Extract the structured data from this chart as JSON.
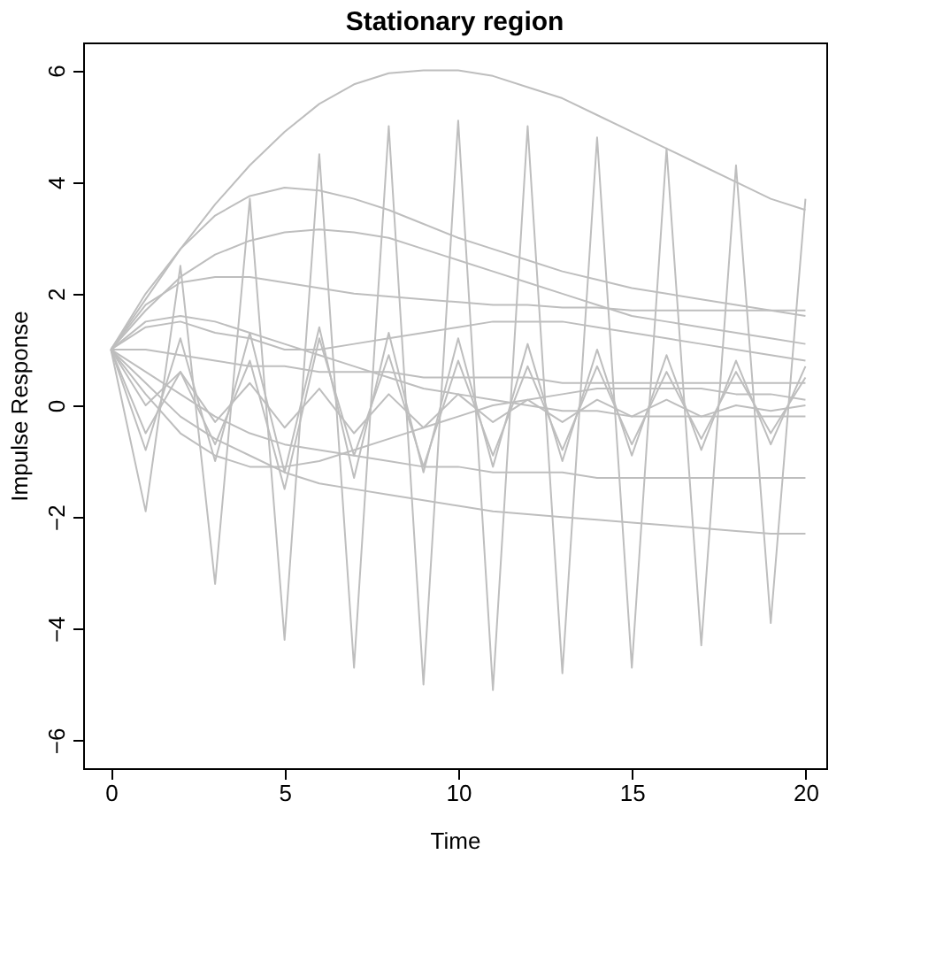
{
  "chart_data": {
    "type": "line",
    "title": "Stationary region",
    "xlabel": "Time",
    "ylabel": "Impulse Response",
    "x": [
      0,
      1,
      2,
      3,
      4,
      5,
      6,
      7,
      8,
      9,
      10,
      11,
      12,
      13,
      14,
      15,
      16,
      17,
      18,
      19,
      20
    ],
    "xlim": [
      -0.8,
      20.6
    ],
    "xticks": [
      0,
      5,
      10,
      15,
      20
    ],
    "ylim": [
      -6.5,
      6.5
    ],
    "yticks": [
      -6,
      -4,
      -2,
      0,
      2,
      4,
      6
    ],
    "grid": false,
    "legend": false,
    "series": [
      {
        "color": "#bebebe",
        "values": [
          1,
          1.9,
          2.8,
          3.6,
          4.3,
          4.9,
          5.4,
          5.75,
          5.95,
          6.0,
          6.0,
          5.9,
          5.7,
          5.5,
          5.2,
          4.9,
          4.6,
          4.3,
          4.0,
          3.7,
          3.5
        ]
      },
      {
        "color": "#bebebe",
        "values": [
          1,
          -1.9,
          2.5,
          -3.2,
          3.7,
          -4.2,
          4.5,
          -4.7,
          5.0,
          -5.0,
          5.1,
          -5.1,
          5.0,
          -4.8,
          4.8,
          -4.7,
          4.6,
          -4.3,
          4.3,
          -3.9,
          3.7
        ]
      },
      {
        "color": "#bebebe",
        "values": [
          1,
          2.0,
          2.8,
          3.4,
          3.75,
          3.9,
          3.85,
          3.7,
          3.5,
          3.25,
          3.0,
          2.8,
          2.6,
          2.4,
          2.25,
          2.1,
          2.0,
          1.9,
          1.8,
          1.7,
          1.6
        ]
      },
      {
        "color": "#bebebe",
        "values": [
          1,
          1.7,
          2.3,
          2.7,
          2.95,
          3.1,
          3.15,
          3.1,
          3.0,
          2.8,
          2.6,
          2.4,
          2.2,
          2.0,
          1.8,
          1.6,
          1.5,
          1.4,
          1.3,
          1.2,
          1.1
        ]
      },
      {
        "color": "#bebebe",
        "values": [
          1,
          1.8,
          2.2,
          2.3,
          2.3,
          2.2,
          2.1,
          2.0,
          1.95,
          1.9,
          1.85,
          1.8,
          1.8,
          1.75,
          1.75,
          1.7,
          1.7,
          1.7,
          1.7,
          1.7,
          1.7
        ]
      },
      {
        "color": "#bebebe",
        "values": [
          1,
          0.4,
          -0.2,
          -0.6,
          -0.9,
          -1.2,
          -1.4,
          -1.5,
          -1.6,
          -1.7,
          -1.8,
          -1.9,
          -1.95,
          -2.0,
          -2.05,
          -2.1,
          -2.15,
          -2.2,
          -2.25,
          -2.3,
          -2.3
        ]
      },
      {
        "color": "#bebebe",
        "values": [
          1,
          -0.8,
          1.2,
          -1.0,
          1.3,
          -1.2,
          1.4,
          -1.3,
          1.3,
          -1.2,
          1.2,
          -1.1,
          1.1,
          -1.0,
          1.0,
          -0.9,
          0.9,
          -0.8,
          0.8,
          -0.7,
          0.7
        ]
      },
      {
        "color": "#bebebe",
        "values": [
          1,
          1.5,
          1.6,
          1.5,
          1.3,
          1.1,
          0.9,
          0.7,
          0.5,
          0.3,
          0.2,
          0.1,
          0.0,
          -0.1,
          -0.1,
          -0.2,
          -0.2,
          -0.2,
          -0.2,
          -0.2,
          -0.2
        ]
      },
      {
        "color": "#bebebe",
        "values": [
          1,
          0.2,
          -0.5,
          -0.9,
          -1.1,
          -1.1,
          -1.0,
          -0.8,
          -0.6,
          -0.4,
          -0.2,
          0.0,
          0.1,
          0.2,
          0.3,
          0.3,
          0.3,
          0.3,
          0.2,
          0.2,
          0.1
        ]
      },
      {
        "color": "#bebebe",
        "values": [
          1,
          -0.5,
          0.6,
          -0.7,
          0.8,
          -1.5,
          1.2,
          -0.9,
          0.9,
          -1.1,
          0.8,
          -0.9,
          0.7,
          -0.8,
          0.7,
          -0.7,
          0.6,
          -0.6,
          0.6,
          -0.5,
          0.5
        ]
      },
      {
        "color": "#bebebe",
        "values": [
          1,
          1.0,
          0.9,
          0.8,
          0.7,
          0.7,
          0.6,
          0.6,
          0.6,
          0.5,
          0.5,
          0.5,
          0.5,
          0.4,
          0.4,
          0.4,
          0.4,
          0.4,
          0.4,
          0.4,
          0.4
        ]
      },
      {
        "color": "#bebebe",
        "values": [
          1,
          0.0,
          0.6,
          -0.3,
          0.4,
          -0.4,
          0.3,
          -0.5,
          0.2,
          -0.4,
          0.2,
          -0.3,
          0.1,
          -0.3,
          0.1,
          -0.2,
          0.1,
          -0.2,
          0.0,
          -0.1,
          0.0
        ]
      },
      {
        "color": "#bebebe",
        "values": [
          1,
          1.4,
          1.5,
          1.3,
          1.2,
          1.0,
          1.0,
          1.1,
          1.2,
          1.3,
          1.4,
          1.5,
          1.5,
          1.5,
          1.4,
          1.3,
          1.2,
          1.1,
          1.0,
          0.9,
          0.8
        ]
      },
      {
        "color": "#bebebe",
        "values": [
          1,
          0.6,
          0.2,
          -0.2,
          -0.5,
          -0.7,
          -0.8,
          -0.9,
          -1.0,
          -1.1,
          -1.1,
          -1.2,
          -1.2,
          -1.2,
          -1.3,
          -1.3,
          -1.3,
          -1.3,
          -1.3,
          -1.3,
          -1.3
        ]
      }
    ]
  }
}
